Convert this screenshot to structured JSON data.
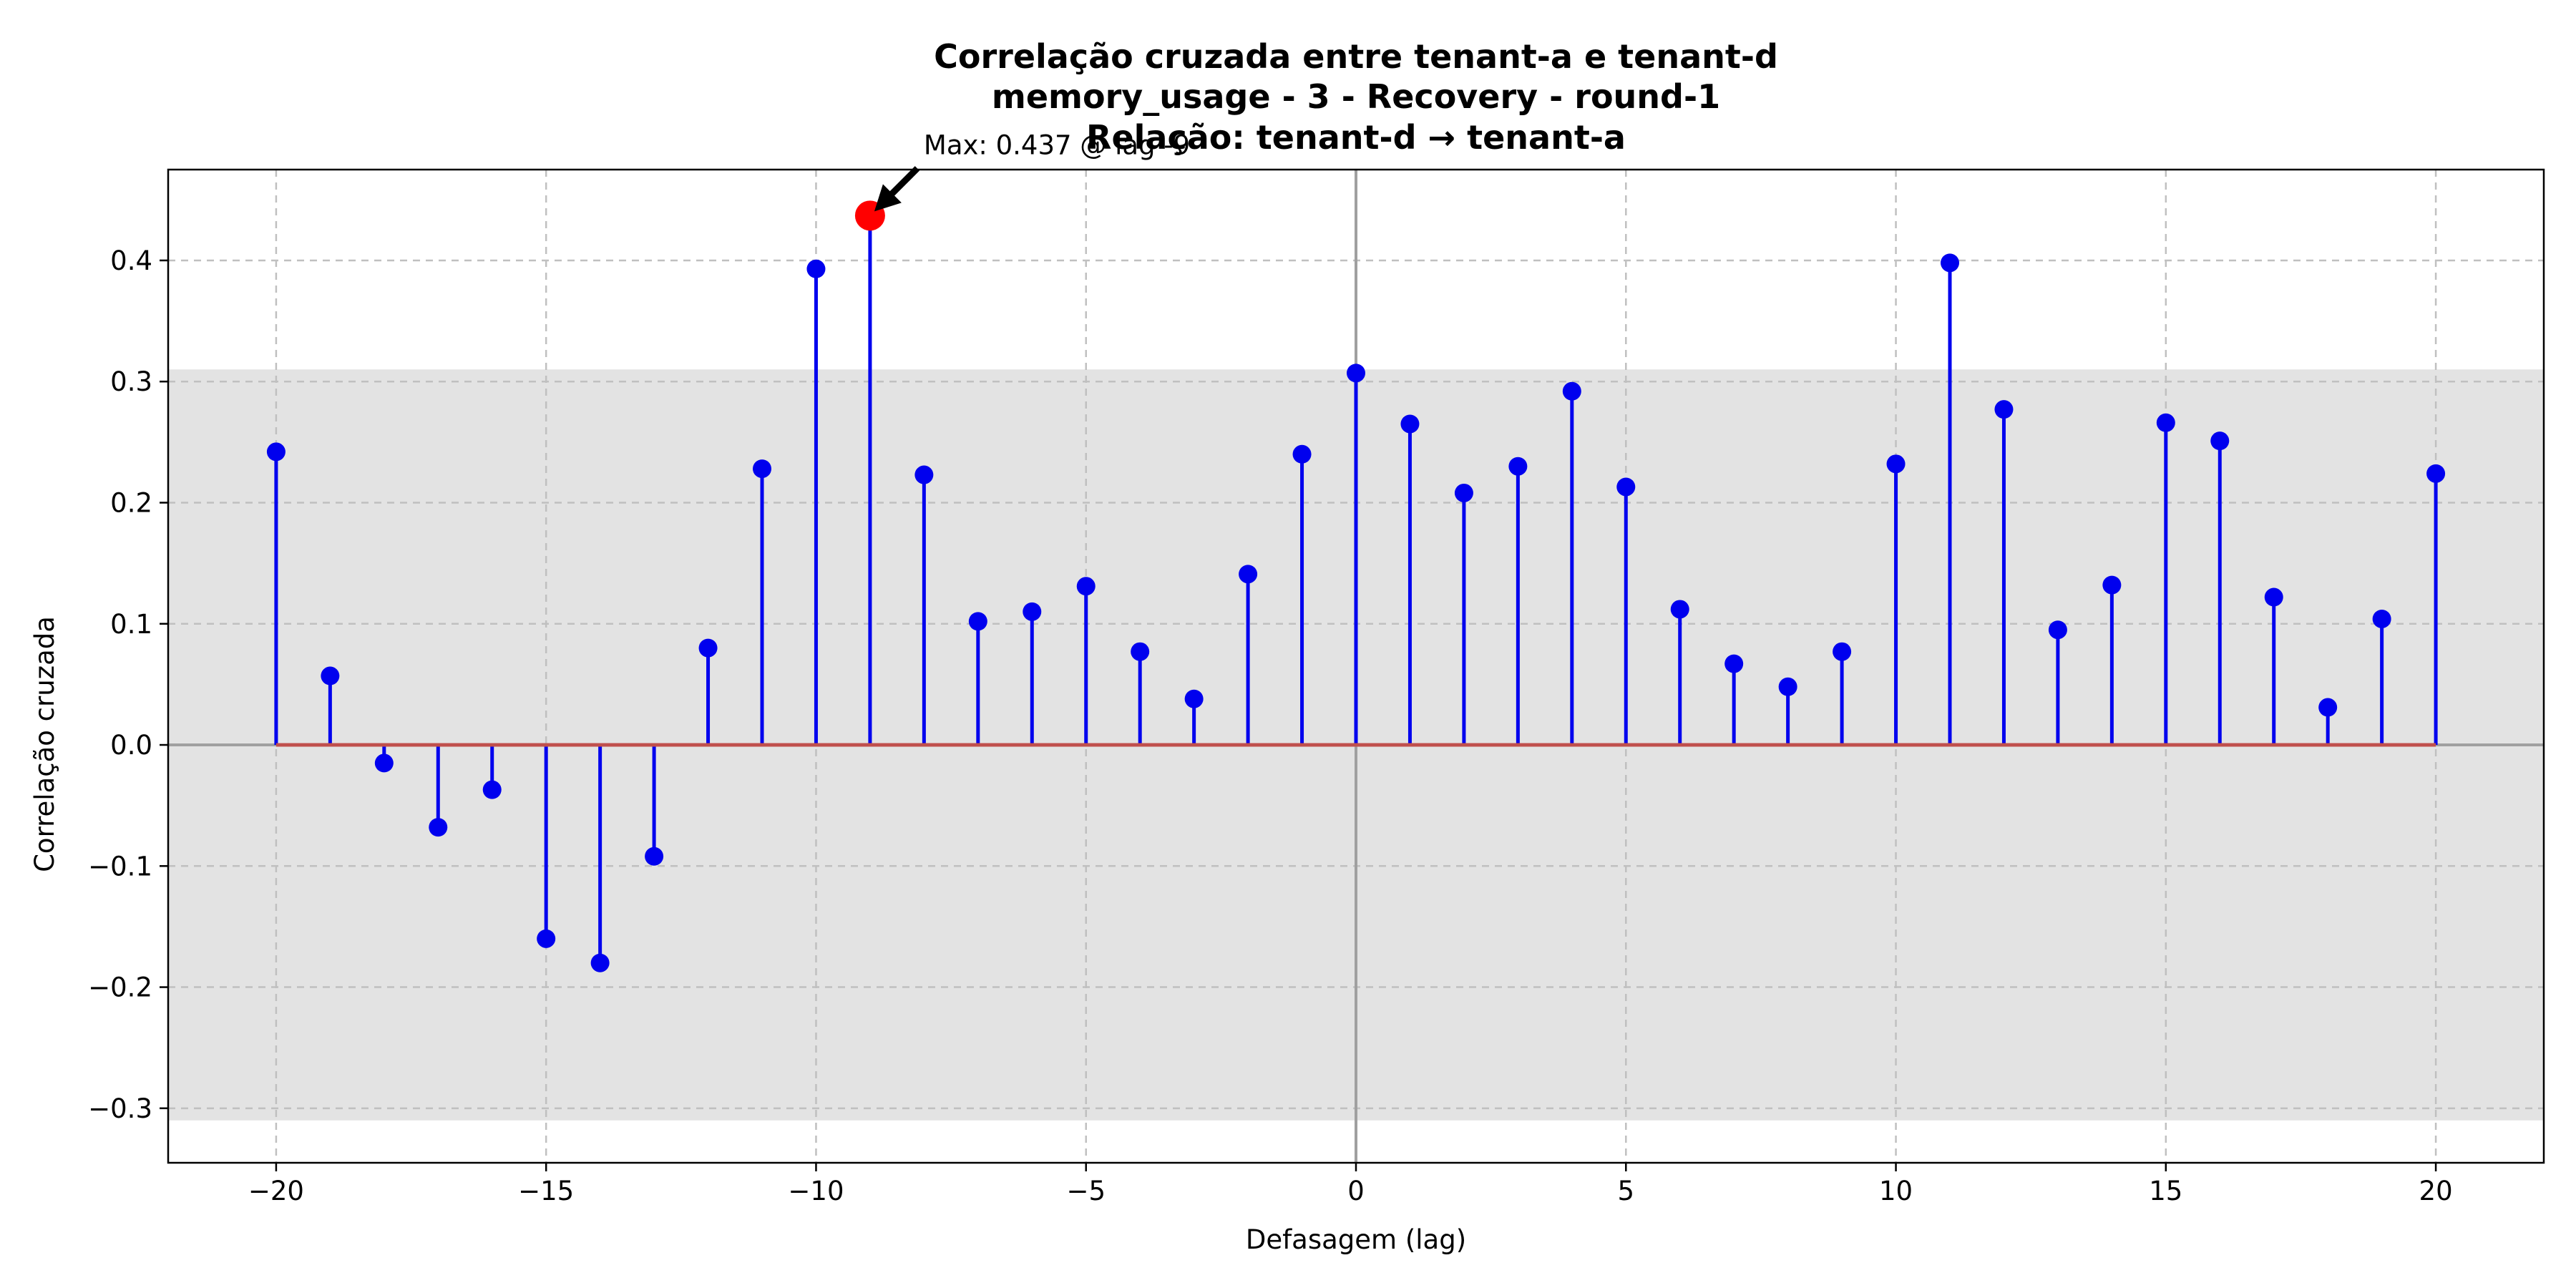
{
  "chart_data": {
    "type": "stem",
    "title_lines": [
      "Correlação cruzada entre tenant-a e tenant-d",
      "memory_usage - 3 - Recovery - round-1",
      "Relação: tenant-d → tenant-a"
    ],
    "xlabel": "Defasagem (lag)",
    "ylabel": "Correlação cruzada",
    "xlim": [
      -22,
      22
    ],
    "ylim": [
      -0.345,
      0.475
    ],
    "x_ticks": [
      -20,
      -15,
      -10,
      -5,
      0,
      5,
      10,
      15,
      20
    ],
    "x_tick_labels": [
      "−20",
      "−15",
      "−10",
      "−5",
      "0",
      "5",
      "10",
      "15",
      "20"
    ],
    "y_ticks": [
      -0.3,
      -0.2,
      -0.1,
      0.0,
      0.1,
      0.2,
      0.3,
      0.4
    ],
    "y_tick_labels": [
      "−0.3",
      "−0.2",
      "−0.1",
      "0.0",
      "0.1",
      "0.2",
      "0.3",
      "0.4"
    ],
    "grid": true,
    "confidence_band": [
      -0.31,
      0.31
    ],
    "x": [
      -20,
      -19,
      -18,
      -17,
      -16,
      -15,
      -14,
      -13,
      -12,
      -11,
      -10,
      -9,
      -8,
      -7,
      -6,
      -5,
      -4,
      -3,
      -2,
      -1,
      0,
      1,
      2,
      3,
      4,
      5,
      6,
      7,
      8,
      9,
      10,
      11,
      12,
      13,
      14,
      15,
      16,
      17,
      18,
      19,
      20
    ],
    "values": [
      0.242,
      0.057,
      -0.015,
      -0.068,
      -0.037,
      -0.16,
      -0.18,
      -0.092,
      0.08,
      0.228,
      0.393,
      0.437,
      0.223,
      0.102,
      0.11,
      0.131,
      0.077,
      0.038,
      0.141,
      0.24,
      0.307,
      0.265,
      0.208,
      0.23,
      0.292,
      0.213,
      0.112,
      0.067,
      0.048,
      0.077,
      0.232,
      0.398,
      0.277,
      0.095,
      0.132,
      0.266,
      0.251,
      0.122,
      0.031,
      0.104,
      0.224
    ],
    "max_point": {
      "lag": -9,
      "value": 0.437
    },
    "annotation": "Max: 0.437 @ lag -9",
    "colors": {
      "stem": "#0000ee",
      "baseline": "#c0504d",
      "max_marker": "#ff0000",
      "band": "#e3e3e3",
      "grid": "#c0c0c0",
      "zero_line": "#a0a0a0"
    }
  }
}
